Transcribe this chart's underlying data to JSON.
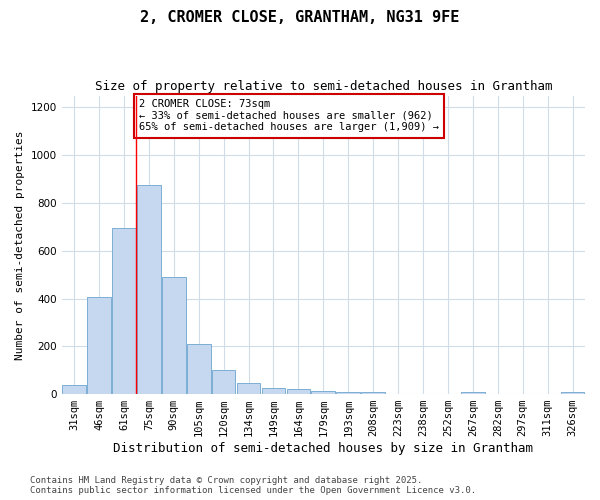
{
  "title": "2, CROMER CLOSE, GRANTHAM, NG31 9FE",
  "subtitle": "Size of property relative to semi-detached houses in Grantham",
  "xlabel": "Distribution of semi-detached houses by size in Grantham",
  "ylabel": "Number of semi-detached properties",
  "categories": [
    "31sqm",
    "46sqm",
    "61sqm",
    "75sqm",
    "90sqm",
    "105sqm",
    "120sqm",
    "134sqm",
    "149sqm",
    "164sqm",
    "179sqm",
    "193sqm",
    "208sqm",
    "223sqm",
    "238sqm",
    "252sqm",
    "267sqm",
    "282sqm",
    "297sqm",
    "311sqm",
    "326sqm"
  ],
  "values": [
    40,
    405,
    695,
    875,
    490,
    210,
    100,
    45,
    25,
    20,
    15,
    10,
    10,
    0,
    0,
    0,
    10,
    0,
    0,
    0,
    10
  ],
  "bar_color": "#c5d8f0",
  "bar_edge_color": "#7bafd4",
  "background_color": "#ffffff",
  "grid_color": "#d0dce8",
  "red_line_x": 2.5,
  "annotation_text": "2 CROMER CLOSE: 73sqm\n← 33% of semi-detached houses are smaller (962)\n65% of semi-detached houses are larger (1,909) →",
  "annotation_box_color": "#ffffff",
  "annotation_box_edge_color": "#cc0000",
  "ylim": [
    0,
    1250
  ],
  "yticks": [
    0,
    200,
    400,
    600,
    800,
    1000,
    1200
  ],
  "footer": "Contains HM Land Registry data © Crown copyright and database right 2025.\nContains public sector information licensed under the Open Government Licence v3.0.",
  "title_fontsize": 11,
  "subtitle_fontsize": 9,
  "xlabel_fontsize": 9,
  "ylabel_fontsize": 8,
  "tick_fontsize": 7.5,
  "annotation_fontsize": 7.5,
  "footer_fontsize": 6.5
}
